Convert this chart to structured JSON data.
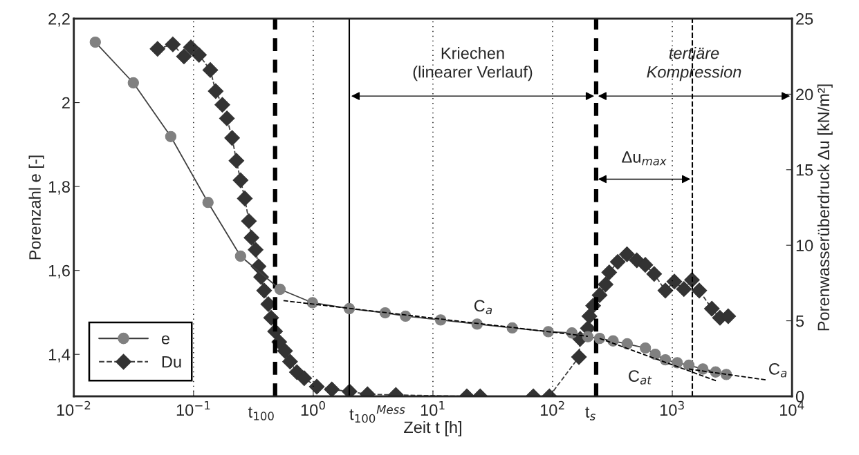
{
  "chart_data": {
    "type": "line",
    "xlabel": "Zeit t [h]",
    "ylabel": "Porenzahl e [-]",
    "y2label": "Porenwasserüberdruck Δu [kN/m²]",
    "log": "x",
    "grid": "x",
    "legend": "bottom left",
    "xlim": [
      0.01,
      10000
    ],
    "xticks": [
      {
        "value": 0.01,
        "label": "10$^{−2}$"
      },
      {
        "value": 0.1,
        "label": "10$^{−1}$"
      },
      {
        "value": 1,
        "label": "10$^{0}$"
      },
      {
        "value": 10,
        "label": "10$^{1}$"
      },
      {
        "value": 100,
        "label": "10$^{2}$"
      },
      {
        "value": 1000,
        "label": "10$^{3}$"
      },
      {
        "value": 10000,
        "label": "10$^{4}$"
      }
    ],
    "ylim": [
      1.3,
      2.2
    ],
    "yticks": [
      {
        "value": 1.4,
        "label": "1,4"
      },
      {
        "value": 1.6,
        "label": "1,6"
      },
      {
        "value": 1.8,
        "label": "1,8"
      },
      2,
      {
        "value": 2.2,
        "label": "2,2"
      }
    ],
    "y2lim": [
      0,
      25
    ],
    "y2ticks": [
      0,
      5,
      10,
      15,
      20,
      25
    ],
    "series": [
      {
        "name": "e",
        "color": "#808080",
        "marker": "circle",
        "line_style": "solid",
        "x": [
          0.0151,
          0.0314,
          0.0645,
          0.132,
          0.247,
          0.528,
          0.986,
          2.0,
          3.99,
          5.9,
          11.6,
          23.4,
          46,
          92,
          145,
          197,
          247,
          320,
          420,
          596,
          720,
          875,
          1100,
          1376,
          1800,
          2300,
          2825
        ],
        "values": [
          2.144,
          2.047,
          1.919,
          1.762,
          1.634,
          1.555,
          1.523,
          1.509,
          1.499,
          1.491,
          1.482,
          1.472,
          1.463,
          1.454,
          1.451,
          1.442,
          1.438,
          1.432,
          1.425,
          1.415,
          1.4,
          1.387,
          1.38,
          1.374,
          1.365,
          1.358,
          1.352
        ]
      },
      {
        "name": "Du",
        "color": "#333333",
        "marker": "diamond",
        "line_style": "dashed",
        "axis": "y2",
        "x": [
          0.05,
          0.0671,
          0.0831,
          0.095,
          0.111,
          0.138,
          0.153,
          0.174,
          0.19,
          0.21,
          0.228,
          0.247,
          0.268,
          0.29,
          0.305,
          0.33,
          0.349,
          0.367,
          0.389,
          0.421,
          0.445,
          0.48,
          0.52,
          0.581,
          0.64,
          0.73,
          0.84,
          1.07,
          1.43,
          2.01,
          2.84,
          4.9,
          19.2,
          24.8,
          69,
          94,
          166,
          170,
          197,
          203,
          218,
          247,
          277,
          297,
          350,
          418,
          505,
          595,
          705,
          875,
          1040,
          1250,
          1460,
          1680,
          2140,
          2500,
          2930
        ],
        "values": [
          23.0,
          23.3,
          22.5,
          23.1,
          22.6,
          21.6,
          20.2,
          19.3,
          18.4,
          17.1,
          15.6,
          14.3,
          13.1,
          11.6,
          10.5,
          9.7,
          8.6,
          7.9,
          7.0,
          6.1,
          5.2,
          4.3,
          3.6,
          3.0,
          2.3,
          1.6,
          1.2,
          0.64,
          0.46,
          0.32,
          0.14,
          0.09,
          0.0,
          0.0,
          0.0,
          0.0,
          2.6,
          3.8,
          4.5,
          5.3,
          6.0,
          6.7,
          7.4,
          8.2,
          8.9,
          9.4,
          9.0,
          8.7,
          8.1,
          7.0,
          7.6,
          7.1,
          7.7,
          7.0,
          5.8,
          5.2,
          5.3
        ]
      },
      {
        "type": "line",
        "color": "#000000",
        "marker": "none",
        "line_style": "dashed",
        "x": [
          0.564,
          197
        ],
        "values": [
          1.528,
          1.443
        ]
      },
      {
        "type": "line",
        "color": "#000000",
        "marker": "none",
        "line_style": "dashed",
        "x": [
          247,
          2377
        ],
        "values": [
          1.438,
          1.336
        ]
      },
      {
        "type": "line",
        "color": "#000000",
        "marker": "none",
        "line_style": "dashed",
        "x": [
          1376,
          6110
        ],
        "values": [
          1.365,
          1.339
        ]
      }
    ],
    "ref_lines": [
      {
        "axis": "x",
        "value": 0.48,
        "label": "t$_{100}$",
        "line_style": "dashed",
        "color": "#000000"
      },
      {
        "axis": "x",
        "value": 2.0,
        "label": "t$_{100}$$^{Mess}$",
        "line_style": "solid",
        "color": "#000000"
      },
      {
        "axis": "x",
        "value": 231,
        "label": "t$_{s}$",
        "line_style": "dashed",
        "color": "#000000"
      },
      {
        "axis": "x",
        "value": 1470,
        "line_style": "dashed",
        "color": "#000000"
      }
    ],
    "annotations": [
      "Kriechen\n(linearer Verlauf)",
      "tertiäre\nKompression",
      "Δu$_{max}$",
      "C$_{a}$",
      "C$_{at}$",
      "C$_{a}$"
    ]
  }
}
